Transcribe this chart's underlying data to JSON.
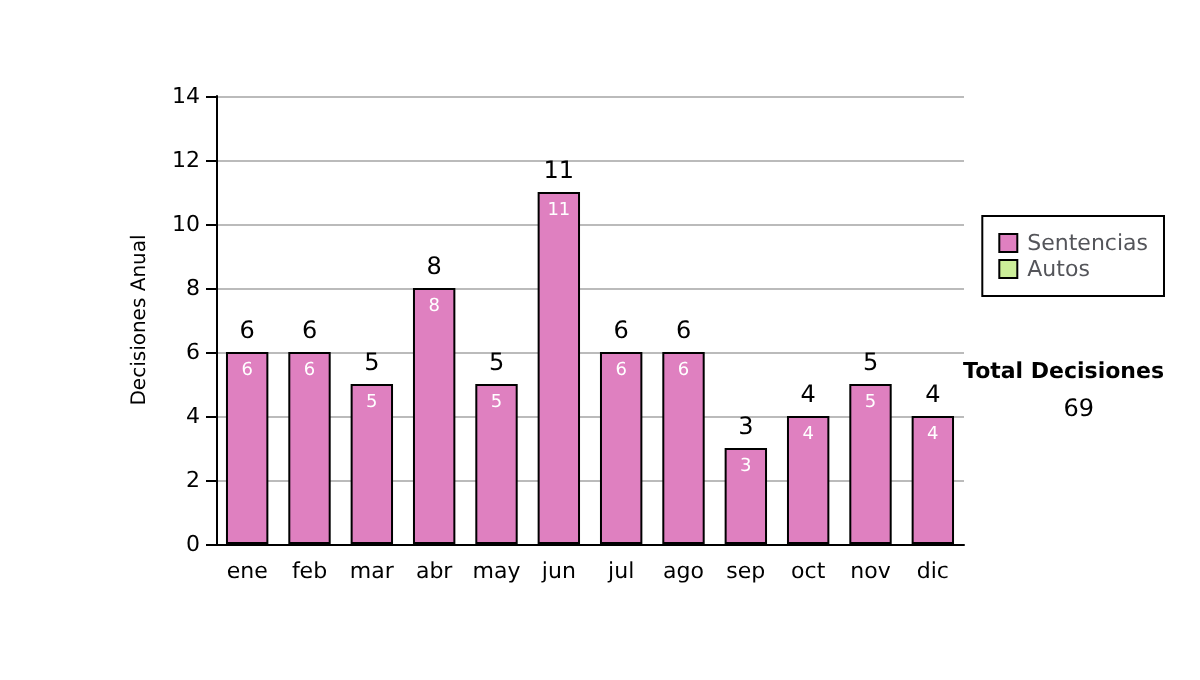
{
  "chart_data": {
    "type": "bar",
    "ylabel": "Decisiones Anual",
    "categories": [
      "ene",
      "feb",
      "mar",
      "abr",
      "may",
      "jun",
      "jul",
      "ago",
      "sep",
      "oct",
      "nov",
      "dic"
    ],
    "series": [
      {
        "name": "Sentencias",
        "color": "#df80c0",
        "values": [
          6,
          6,
          5,
          8,
          5,
          11,
          6,
          6,
          3,
          4,
          5,
          4
        ],
        "value_labels": [
          "6",
          "6",
          "5",
          "8",
          "5",
          "11",
          "6",
          "6",
          "3",
          "4",
          "5",
          "4"
        ]
      },
      {
        "name": "Autos",
        "color": "#ccee99",
        "values": [
          0,
          0,
          0,
          0,
          0,
          0,
          0,
          0,
          0,
          0,
          0,
          0
        ]
      }
    ],
    "stacked": true,
    "totals": [
      "6",
      "6",
      "5",
      "8",
      "5",
      "11",
      "6",
      "6",
      "3",
      "4",
      "5",
      "4"
    ],
    "ylim": [
      0,
      14
    ],
    "yticks": [
      0,
      2,
      4,
      6,
      8,
      10,
      12,
      14
    ],
    "grid": "y",
    "legend": "right",
    "annotations": [
      "Total Decisiones",
      "69"
    ]
  }
}
